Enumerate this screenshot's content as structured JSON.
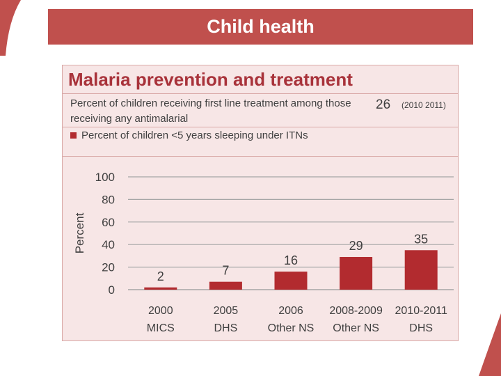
{
  "slide": {
    "title": "Child health"
  },
  "panel": {
    "heading": "Malaria prevention and treatment",
    "indicator": {
      "label": "Percent of children receiving first line treatment among those receiving any antimalarial",
      "value": "26",
      "years": "(2010  2011)"
    },
    "legend_label": "Percent of children <5 years sleeping under ITNs"
  },
  "colors": {
    "accent": "#c0504d",
    "bar": "#b22b2f",
    "panel_bg": "#f7e6e6"
  },
  "chart_data": {
    "type": "bar",
    "categories": [
      [
        "2000",
        "MICS"
      ],
      [
        "2005",
        "DHS"
      ],
      [
        "2006",
        "Other NS"
      ],
      [
        "2008-2009",
        "Other NS"
      ],
      [
        "2010-2011",
        "DHS"
      ]
    ],
    "series": [
      {
        "values": [
          2,
          7,
          16,
          29,
          35
        ]
      }
    ],
    "ylabel": "Percent",
    "ylim": [
      0,
      100
    ],
    "yticks": [
      0,
      20,
      40,
      60,
      80,
      100
    ],
    "data_labels": [
      "2",
      "7",
      "16",
      "29",
      "35"
    ],
    "grid": true
  }
}
